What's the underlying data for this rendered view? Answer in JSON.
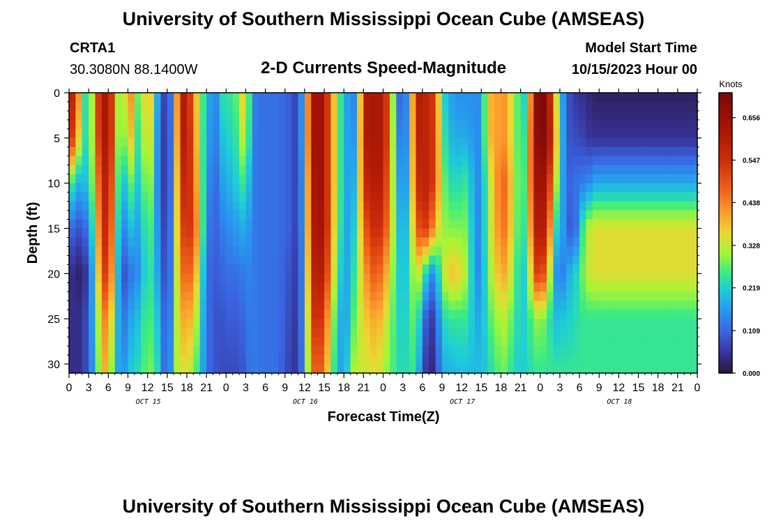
{
  "header": {
    "title": "University of Southern Mississippi Ocean Cube (AMSEAS)",
    "station": "CRTA1",
    "coords": "30.3080N  88.1400W",
    "chart_title": "2-D Currents Speed-Magnitude",
    "model_start_label": "Model Start Time",
    "model_start_value": "10/15/2023 Hour 00"
  },
  "footer": {
    "title": "University of Southern Mississippi Ocean Cube (AMSEAS)"
  },
  "chart_data": {
    "type": "heatmap",
    "title": "2-D Currents Speed-Magnitude",
    "xlabel": "Forecast Time(Z)",
    "ylabel": "Depth (ft)",
    "x_range_hours": [
      0,
      96
    ],
    "y_range_ft": [
      0,
      31
    ],
    "x_ticks_hours": [
      0,
      3,
      6,
      9,
      12,
      15,
      18,
      21,
      24,
      27,
      30,
      33,
      36,
      39,
      42,
      45,
      48,
      51,
      54,
      57,
      60,
      63,
      66,
      69,
      72,
      75,
      78,
      81,
      84,
      87,
      90,
      93,
      96
    ],
    "x_tick_labels": [
      "0",
      "3",
      "6",
      "9",
      "12",
      "15",
      "18",
      "21",
      "0",
      "3",
      "6",
      "9",
      "12",
      "15",
      "18",
      "21",
      "0",
      "3",
      "6",
      "9",
      "12",
      "15",
      "18",
      "21",
      "0",
      "3",
      "6",
      "9",
      "12",
      "15",
      "18",
      "21",
      "0"
    ],
    "y_ticks": [
      0,
      5,
      10,
      15,
      20,
      25,
      30
    ],
    "y_tick_labels": [
      "0",
      "5",
      "10",
      "15",
      "20",
      "25",
      "30"
    ],
    "date_labels": [
      {
        "hour": 12,
        "text": "OCT 15"
      },
      {
        "hour": 36,
        "text": "OCT 16"
      },
      {
        "hour": 60,
        "text": "OCT 17"
      },
      {
        "hour": 84,
        "text": "OCT 18"
      }
    ],
    "colorbar": {
      "unit": "Knots",
      "range": [
        0.0,
        0.72
      ],
      "ticks": [
        0.0,
        0.109,
        0.219,
        0.328,
        0.438,
        0.547,
        0.656
      ],
      "tick_labels": [
        "0.000",
        "0.109",
        "0.219",
        "0.328",
        "0.438",
        "0.547",
        "0.656"
      ]
    },
    "depth_samples_ft": [
      0,
      5,
      10,
      15,
      20,
      25,
      31
    ],
    "series": [
      {
        "hour": 0,
        "speeds": [
          0.62,
          0.6,
          0.3,
          0.12,
          0.05,
          0.05,
          0.05
        ]
      },
      {
        "hour": 1,
        "speeds": [
          0.55,
          0.45,
          0.2,
          0.1,
          0.03,
          0.04,
          0.04
        ]
      },
      {
        "hour": 2,
        "speeds": [
          0.3,
          0.28,
          0.18,
          0.08,
          0.02,
          0.05,
          0.05
        ]
      },
      {
        "hour": 3,
        "speeds": [
          0.18,
          0.2,
          0.22,
          0.15,
          0.08,
          0.1,
          0.1
        ]
      },
      {
        "hour": 4,
        "speeds": [
          0.45,
          0.42,
          0.35,
          0.3,
          0.25,
          0.22,
          0.2
        ]
      },
      {
        "hour": 5,
        "speeds": [
          0.62,
          0.62,
          0.58,
          0.55,
          0.5,
          0.42,
          0.38
        ]
      },
      {
        "hour": 6,
        "speeds": [
          0.62,
          0.62,
          0.6,
          0.58,
          0.55,
          0.45,
          0.4
        ]
      },
      {
        "hour": 7,
        "speeds": [
          0.45,
          0.45,
          0.4,
          0.35,
          0.3,
          0.25,
          0.2
        ]
      },
      {
        "hour": 8,
        "speeds": [
          0.18,
          0.15,
          0.12,
          0.1,
          0.08,
          0.12,
          0.15
        ]
      },
      {
        "hour": 9,
        "speeds": [
          0.5,
          0.45,
          0.3,
          0.2,
          0.1,
          0.15,
          0.18
        ]
      },
      {
        "hour": 10,
        "speeds": [
          0.35,
          0.3,
          0.25,
          0.2,
          0.15,
          0.2,
          0.25
        ]
      },
      {
        "hour": 11,
        "speeds": [
          0.22,
          0.2,
          0.18,
          0.15,
          0.15,
          0.2,
          0.22
        ]
      },
      {
        "hour": 12,
        "speeds": [
          0.48,
          0.45,
          0.38,
          0.32,
          0.28,
          0.3,
          0.32
        ]
      },
      {
        "hour": 13,
        "speeds": [
          0.25,
          0.22,
          0.2,
          0.2,
          0.2,
          0.22,
          0.25
        ]
      },
      {
        "hour": 14,
        "speeds": [
          0.12,
          0.1,
          0.1,
          0.12,
          0.15,
          0.2,
          0.22
        ]
      },
      {
        "hour": 15,
        "speeds": [
          0.03,
          0.03,
          0.03,
          0.03,
          0.03,
          0.03,
          0.03
        ]
      },
      {
        "hour": 16,
        "speeds": [
          0.22,
          0.2,
          0.2,
          0.22,
          0.22,
          0.25,
          0.28
        ]
      },
      {
        "hour": 17,
        "speeds": [
          0.62,
          0.6,
          0.55,
          0.5,
          0.45,
          0.4,
          0.35
        ]
      },
      {
        "hour": 18,
        "speeds": [
          0.6,
          0.6,
          0.58,
          0.55,
          0.48,
          0.4,
          0.35
        ]
      },
      {
        "hour": 19,
        "speeds": [
          0.45,
          0.48,
          0.5,
          0.52,
          0.45,
          0.38,
          0.3
        ]
      },
      {
        "hour": 20,
        "speeds": [
          0.3,
          0.3,
          0.32,
          0.35,
          0.3,
          0.25,
          0.22
        ]
      },
      {
        "hour": 21,
        "speeds": [
          0.22,
          0.2,
          0.18,
          0.15,
          0.12,
          0.12,
          0.12
        ]
      },
      {
        "hour": 22,
        "speeds": [
          0.12,
          0.12,
          0.1,
          0.1,
          0.1,
          0.1,
          0.1
        ]
      },
      {
        "hour": 23,
        "speeds": [
          0.18,
          0.16,
          0.14,
          0.12,
          0.1,
          0.08,
          0.08
        ]
      },
      {
        "hour": 24,
        "speeds": [
          0.3,
          0.25,
          0.2,
          0.15,
          0.12,
          0.1,
          0.08
        ]
      },
      {
        "hour": 25,
        "speeds": [
          0.2,
          0.2,
          0.18,
          0.15,
          0.12,
          0.1,
          0.08
        ]
      },
      {
        "hour": 26,
        "speeds": [
          0.35,
          0.3,
          0.25,
          0.18,
          0.12,
          0.1,
          0.08
        ]
      },
      {
        "hour": 27,
        "speeds": [
          0.38,
          0.35,
          0.25,
          0.18,
          0.14,
          0.12,
          0.1
        ]
      },
      {
        "hour": 28,
        "speeds": [
          0.15,
          0.14,
          0.14,
          0.14,
          0.14,
          0.14,
          0.14
        ]
      },
      {
        "hour": 29,
        "speeds": [
          0.12,
          0.12,
          0.12,
          0.12,
          0.12,
          0.12,
          0.12
        ]
      },
      {
        "hour": 30,
        "speeds": [
          0.12,
          0.12,
          0.12,
          0.12,
          0.12,
          0.12,
          0.12
        ]
      },
      {
        "hour": 32,
        "speeds": [
          0.12,
          0.12,
          0.12,
          0.12,
          0.12,
          0.12,
          0.12
        ]
      },
      {
        "hour": 34,
        "speeds": [
          0.1,
          0.1,
          0.1,
          0.1,
          0.08,
          0.07,
          0.06
        ]
      },
      {
        "hour": 35,
        "speeds": [
          0.05,
          0.05,
          0.05,
          0.05,
          0.05,
          0.05,
          0.05
        ]
      },
      {
        "hour": 36,
        "speeds": [
          0.25,
          0.25,
          0.22,
          0.22,
          0.2,
          0.2,
          0.18
        ]
      },
      {
        "hour": 37,
        "speeds": [
          0.62,
          0.62,
          0.6,
          0.58,
          0.55,
          0.5,
          0.45
        ]
      },
      {
        "hour": 38,
        "speeds": [
          0.66,
          0.66,
          0.66,
          0.65,
          0.62,
          0.58,
          0.5
        ]
      },
      {
        "hour": 39,
        "speeds": [
          0.62,
          0.62,
          0.62,
          0.62,
          0.58,
          0.5,
          0.45
        ]
      },
      {
        "hour": 40,
        "speeds": [
          0.45,
          0.45,
          0.45,
          0.45,
          0.42,
          0.35,
          0.3
        ]
      },
      {
        "hour": 41,
        "speeds": [
          0.3,
          0.3,
          0.3,
          0.28,
          0.25,
          0.22,
          0.2
        ]
      },
      {
        "hour": 42,
        "speeds": [
          0.2,
          0.2,
          0.2,
          0.2,
          0.18,
          0.15,
          0.15
        ]
      },
      {
        "hour": 43,
        "speeds": [
          0.14,
          0.14,
          0.15,
          0.15,
          0.18,
          0.22,
          0.28
        ]
      },
      {
        "hour": 44,
        "speeds": [
          0.15,
          0.18,
          0.22,
          0.28,
          0.3,
          0.32,
          0.35
        ]
      },
      {
        "hour": 45,
        "speeds": [
          0.6,
          0.6,
          0.55,
          0.45,
          0.38,
          0.35,
          0.32
        ]
      },
      {
        "hour": 46,
        "speeds": [
          0.62,
          0.62,
          0.6,
          0.55,
          0.48,
          0.4,
          0.35
        ]
      },
      {
        "hour": 47,
        "speeds": [
          0.62,
          0.62,
          0.6,
          0.55,
          0.48,
          0.4,
          0.35
        ]
      },
      {
        "hour": 48,
        "speeds": [
          0.62,
          0.62,
          0.6,
          0.55,
          0.45,
          0.38,
          0.32
        ]
      },
      {
        "hour": 49,
        "speeds": [
          0.45,
          0.45,
          0.42,
          0.4,
          0.35,
          0.3,
          0.28
        ]
      },
      {
        "hour": 50,
        "speeds": [
          0.15,
          0.18,
          0.22,
          0.25,
          0.25,
          0.25,
          0.25
        ]
      },
      {
        "hour": 51,
        "speeds": [
          0.08,
          0.1,
          0.12,
          0.15,
          0.18,
          0.2,
          0.22
        ]
      },
      {
        "hour": 52,
        "speeds": [
          0.2,
          0.2,
          0.22,
          0.25,
          0.25,
          0.25,
          0.25
        ]
      },
      {
        "hour": 53,
        "speeds": [
          0.62,
          0.6,
          0.55,
          0.45,
          0.35,
          0.3,
          0.25
        ]
      },
      {
        "hour": 54,
        "speeds": [
          0.58,
          0.58,
          0.58,
          0.55,
          0.3,
          0.15,
          0.1
        ]
      },
      {
        "hour": 55,
        "speeds": [
          0.58,
          0.58,
          0.58,
          0.5,
          0.15,
          0.05,
          0.02
        ]
      },
      {
        "hour": 56,
        "speeds": [
          0.5,
          0.5,
          0.5,
          0.4,
          0.15,
          0.08,
          0.05
        ]
      },
      {
        "hour": 57,
        "speeds": [
          0.25,
          0.28,
          0.3,
          0.3,
          0.3,
          0.22,
          0.18
        ]
      },
      {
        "hour": 58,
        "speeds": [
          0.18,
          0.2,
          0.25,
          0.3,
          0.38,
          0.25,
          0.18
        ]
      },
      {
        "hour": 59,
        "speeds": [
          0.15,
          0.18,
          0.22,
          0.28,
          0.38,
          0.25,
          0.2
        ]
      },
      {
        "hour": 60,
        "speeds": [
          0.15,
          0.18,
          0.25,
          0.3,
          0.35,
          0.25,
          0.2
        ]
      },
      {
        "hour": 61,
        "speeds": [
          0.15,
          0.18,
          0.25,
          0.28,
          0.3,
          0.25,
          0.2
        ]
      },
      {
        "hour": 62,
        "speeds": [
          0.15,
          0.15,
          0.15,
          0.15,
          0.15,
          0.18,
          0.2
        ]
      },
      {
        "hour": 63,
        "speeds": [
          0.15,
          0.15,
          0.15,
          0.15,
          0.15,
          0.18,
          0.2
        ]
      },
      {
        "hour": 64,
        "speeds": [
          0.38,
          0.38,
          0.3,
          0.3,
          0.28,
          0.25,
          0.22
        ]
      },
      {
        "hour": 65,
        "speeds": [
          0.4,
          0.4,
          0.38,
          0.38,
          0.35,
          0.3,
          0.25
        ]
      },
      {
        "hour": 66,
        "speeds": [
          0.42,
          0.42,
          0.48,
          0.45,
          0.4,
          0.32,
          0.28
        ]
      },
      {
        "hour": 67,
        "speeds": [
          0.42,
          0.42,
          0.45,
          0.45,
          0.4,
          0.32,
          0.28
        ]
      },
      {
        "hour": 68,
        "speeds": [
          0.3,
          0.3,
          0.32,
          0.3,
          0.28,
          0.25,
          0.22
        ]
      },
      {
        "hour": 69,
        "speeds": [
          0.25,
          0.25,
          0.25,
          0.25,
          0.22,
          0.22,
          0.22
        ]
      },
      {
        "hour": 70,
        "speeds": [
          0.2,
          0.25,
          0.28,
          0.25,
          0.22,
          0.22,
          0.22
        ]
      },
      {
        "hour": 71,
        "speeds": [
          0.66,
          0.66,
          0.62,
          0.58,
          0.48,
          0.3,
          0.25
        ]
      },
      {
        "hour": 72,
        "speeds": [
          0.72,
          0.7,
          0.66,
          0.62,
          0.55,
          0.3,
          0.25
        ]
      },
      {
        "hour": 73,
        "speeds": [
          0.7,
          0.7,
          0.62,
          0.58,
          0.45,
          0.28,
          0.25
        ]
      },
      {
        "hour": 74,
        "speeds": [
          0.45,
          0.5,
          0.4,
          0.28,
          0.2,
          0.2,
          0.25
        ]
      },
      {
        "hour": 75,
        "speeds": [
          0.22,
          0.25,
          0.22,
          0.18,
          0.1,
          0.2,
          0.25
        ]
      },
      {
        "hour": 76,
        "speeds": [
          0.1,
          0.1,
          0.12,
          0.15,
          0.18,
          0.22,
          0.25
        ]
      },
      {
        "hour": 77,
        "speeds": [
          0.06,
          0.08,
          0.1,
          0.05,
          0.2,
          0.22,
          0.25
        ]
      },
      {
        "hour": 78,
        "speeds": [
          0.05,
          0.08,
          0.15,
          0.2,
          0.25,
          0.25,
          0.25
        ]
      },
      {
        "hour": 79,
        "speeds": [
          0.04,
          0.06,
          0.12,
          0.3,
          0.32,
          0.25,
          0.25
        ]
      },
      {
        "hour": 80,
        "speeds": [
          0.02,
          0.05,
          0.18,
          0.35,
          0.35,
          0.25,
          0.25
        ]
      }
    ]
  }
}
